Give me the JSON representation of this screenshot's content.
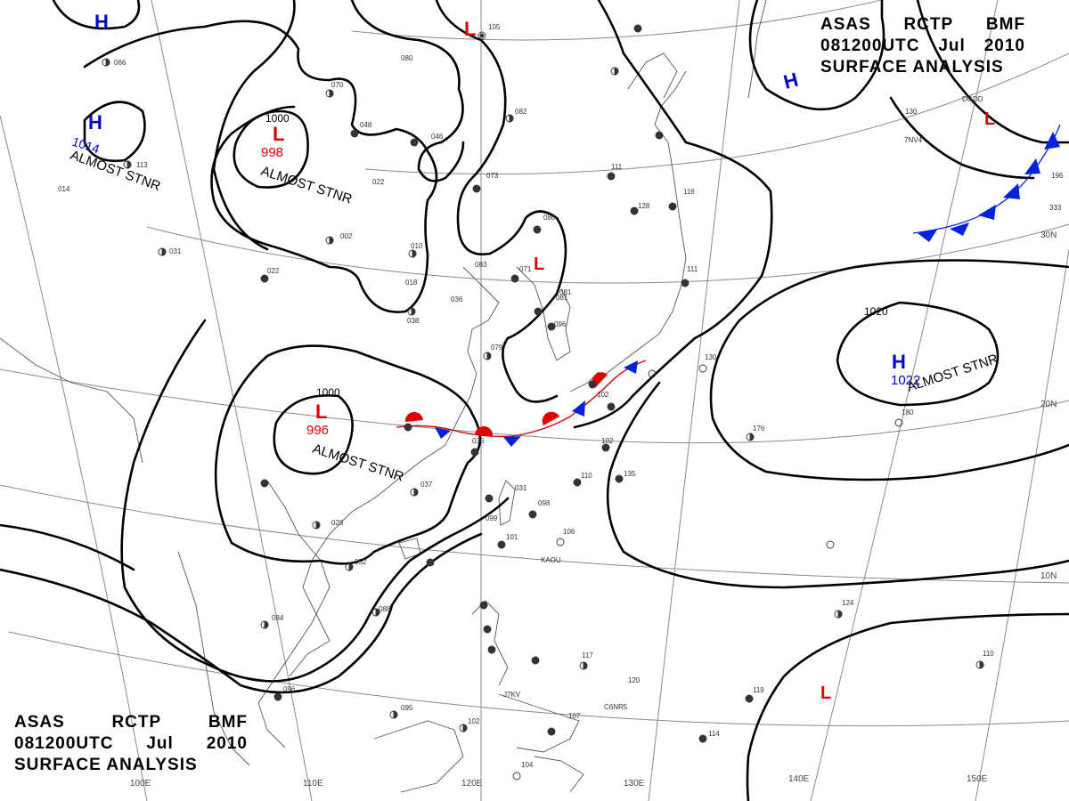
{
  "header": {
    "line1": [
      "ASAS",
      "RCTP",
      "BMF"
    ],
    "line2": [
      "081200UTC",
      "Jul",
      "2010"
    ],
    "line3": "SURFACE ANALYSIS"
  },
  "colors": {
    "high": "#0000cc",
    "low": "#e00000",
    "isobar": "#000000",
    "grid": "#888888",
    "coast": "#555555"
  },
  "pressure_systems": [
    {
      "type": "H",
      "value": ""
    },
    {
      "type": "H",
      "value": "1014"
    },
    {
      "type": "L",
      "value": "998",
      "note": "ALMOST STNR"
    },
    {
      "type": "L",
      "value": ""
    },
    {
      "type": "H",
      "value": ""
    },
    {
      "type": "L",
      "value": ""
    },
    {
      "type": "L",
      "value": ""
    },
    {
      "type": "H",
      "value": "1022",
      "note": "ALMOST STNR"
    },
    {
      "type": "L",
      "value": "996",
      "note": "ALMOST STNR"
    },
    {
      "type": "L",
      "value": ""
    }
  ],
  "notes": {
    "note_1014": "ALMOST STNR"
  },
  "isobar_labels": [
    "1000",
    "1000",
    "1020"
  ],
  "longitude_labels": [
    "100E",
    "110E",
    "120E",
    "130E",
    "140E",
    "150E"
  ],
  "latitude_labels": [
    "30N",
    "20N",
    "10N"
  ],
  "station_values": [
    "105",
    "080",
    "070",
    "048",
    "046",
    "082",
    "022",
    "002",
    "010",
    "018",
    "036",
    "038",
    "073",
    "080",
    "083",
    "071",
    "081",
    "096",
    "079",
    "036",
    "037",
    "028",
    "052",
    "088",
    "084",
    "096",
    "095",
    "102",
    "104",
    "102",
    "110",
    "117",
    "120",
    "107",
    "119",
    "114",
    "124",
    "110",
    "176",
    "180",
    "130",
    "135",
    "102",
    "066",
    "113",
    "014",
    "031",
    "022",
    "031",
    "098",
    "106",
    "101",
    "081",
    "099",
    "128",
    "111",
    "111",
    "116",
    "130",
    "196",
    "333"
  ],
  "station_names": [
    "KAOU",
    "C6NR5",
    "DGDD",
    "7NV4",
    "J7KV"
  ]
}
